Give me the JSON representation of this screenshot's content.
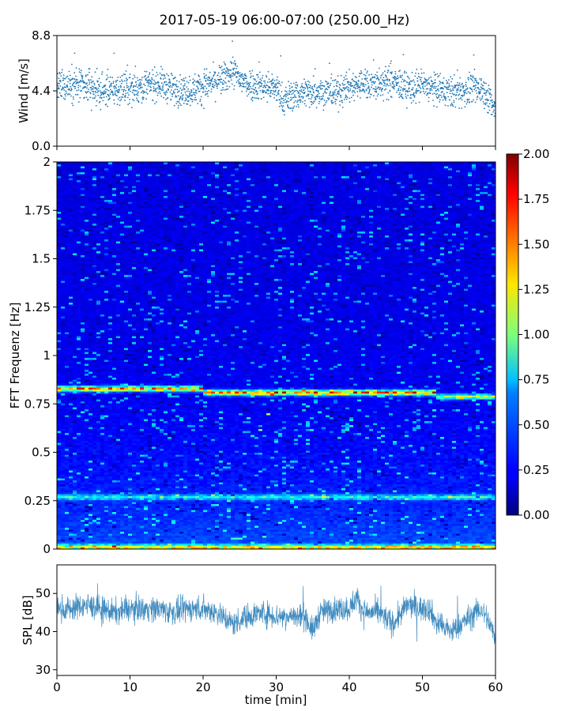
{
  "chart_data": [
    {
      "type": "scatter",
      "title": "2017-05-19 06:00-07:00 (250.00_Hz)",
      "ylabel": "Wind [m/s]",
      "xlim": [
        0,
        60
      ],
      "ylim": [
        0,
        8.8
      ],
      "yticks": [
        "0.0",
        "4.4",
        "8.8"
      ],
      "marker_color": "#1f77b4",
      "series": [
        {
          "x": [
            0,
            2,
            4,
            6,
            8,
            10,
            12,
            14,
            16,
            18,
            20,
            22,
            23,
            24,
            25,
            26,
            28,
            30,
            31,
            32,
            34,
            36,
            38,
            40,
            42,
            44,
            46,
            48,
            50,
            52,
            54,
            56,
            58,
            59,
            60
          ],
          "y": [
            4.6,
            5.0,
            4.7,
            4.3,
            4.5,
            4.6,
            4.8,
            5.0,
            4.5,
            4.4,
            4.7,
            5.2,
            5.4,
            6.0,
            5.3,
            5.0,
            4.8,
            4.6,
            3.6,
            4.0,
            4.3,
            4.4,
            4.2,
            4.7,
            5.0,
            4.9,
            5.1,
            4.6,
            4.8,
            4.5,
            4.3,
            4.4,
            4.6,
            4.0,
            2.6
          ]
        }
      ]
    },
    {
      "type": "heatmap",
      "ylabel": "FFT Frequenz [Hz]",
      "xlim": [
        0,
        60
      ],
      "ylim": [
        0,
        2
      ],
      "yticks": [
        "0",
        "0.25",
        "0.5",
        "0.75",
        "1",
        "1.25",
        "1.5",
        "1.75",
        "2"
      ],
      "colorbar": {
        "range": [
          0,
          2
        ],
        "ticks": [
          "0.00",
          "0.25",
          "0.50",
          "0.75",
          "1.00",
          "1.25",
          "1.50",
          "1.75",
          "2.00"
        ],
        "colormap": "jet"
      },
      "bands": [
        {
          "freq": 0.83,
          "time_start": 0,
          "time_end": 20,
          "intensity": 1.5
        },
        {
          "freq": 0.81,
          "time_start": 20,
          "time_end": 52,
          "intensity": 1.6
        },
        {
          "freq": 0.79,
          "time_start": 52,
          "time_end": 60,
          "intensity": 1.0
        },
        {
          "freq": 0.27,
          "time_start": 0,
          "time_end": 60,
          "intensity": 0.6
        },
        {
          "freq": 0.01,
          "time_start": 0,
          "time_end": 60,
          "intensity": 1.2
        }
      ]
    },
    {
      "type": "line",
      "ylabel": "SPL [dB]",
      "xlabel": "time [min]",
      "xlim": [
        0,
        60
      ],
      "ylim": [
        28.5,
        57.5
      ],
      "yticks": [
        "30",
        "40",
        "50"
      ],
      "xticks": [
        "0",
        "10",
        "20",
        "30",
        "40",
        "50",
        "60"
      ],
      "line_color": "#1f77b4",
      "series": [
        {
          "x": [
            0,
            2,
            4,
            6,
            8,
            10,
            12,
            14,
            16,
            18,
            20,
            22,
            24,
            26,
            28,
            30,
            32,
            34,
            35,
            36,
            38,
            40,
            41,
            42,
            44,
            46,
            48,
            50,
            51,
            52,
            54,
            56,
            58,
            59,
            60
          ],
          "y": [
            46,
            46,
            47,
            46,
            45,
            46,
            46,
            46,
            45,
            46,
            46,
            45,
            42,
            44,
            45,
            44,
            44,
            44,
            40,
            45,
            46,
            46,
            49,
            45,
            45,
            42,
            47,
            46,
            46,
            42,
            40,
            43,
            46,
            43,
            38
          ]
        }
      ]
    }
  ]
}
